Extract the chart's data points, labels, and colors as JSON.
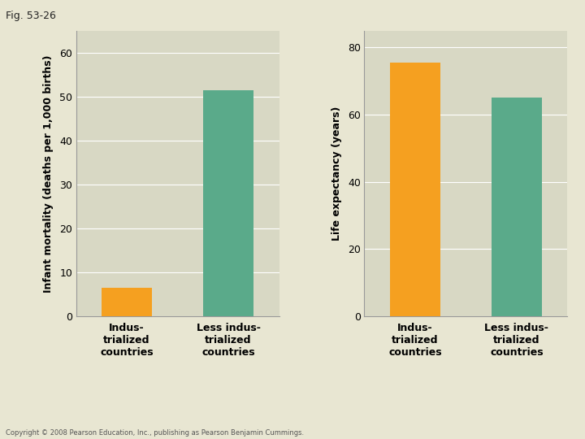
{
  "fig_label": "Fig. 53-26",
  "background_color": "#e8e6d2",
  "plot_bg_color": "#d8d8c4",
  "orange_color": "#f5a020",
  "teal_color": "#5aaa8a",
  "categories": [
    "Indus-\ntrialized\ncountries",
    "Less indus-\ntrialized\ncountries"
  ],
  "chart1": {
    "ylabel": "Infant mortality (deaths per 1,000 births)",
    "values": [
      6.5,
      51.5
    ],
    "ylim": [
      0,
      65
    ],
    "yticks": [
      0,
      10,
      20,
      30,
      40,
      50,
      60
    ],
    "bar_colors": [
      "#f5a020",
      "#5aaa8a"
    ]
  },
  "chart2": {
    "ylabel": "Life expectancy (years)",
    "values": [
      75.5,
      65.0
    ],
    "ylim": [
      0,
      85
    ],
    "yticks": [
      0,
      20,
      40,
      60,
      80
    ],
    "bar_colors": [
      "#f5a020",
      "#5aaa8a"
    ]
  },
  "copyright": "Copyright © 2008 Pearson Education, Inc., publishing as Pearson Benjamin Cummings.",
  "label_fontsize": 9,
  "tick_fontsize": 9,
  "xlabel_fontsize": 9,
  "ylabel_fontsize": 9
}
